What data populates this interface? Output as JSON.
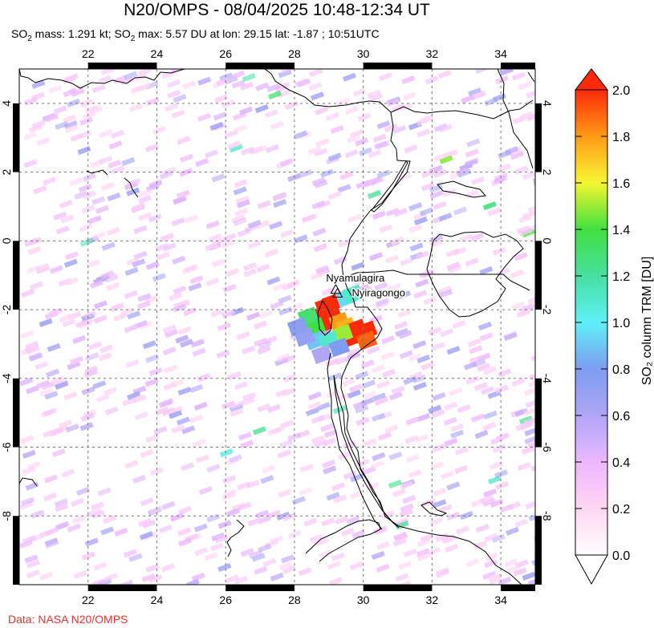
{
  "title": "N20/OMPS - 08/04/2025 10:48-12:34 UT",
  "subtitle": {
    "p1": "SO",
    "sub1": "2",
    "p2": " mass: 1.291 kt; SO",
    "sub2": "2",
    "p3": " max: 5.57 DU at lon: 29.15 lat: -1.87 ; 10:51UTC"
  },
  "credit": "Data: NASA N20/OMPS",
  "map": {
    "lon_range": [
      20.0,
      35.0
    ],
    "lat_range": [
      -10.0,
      5.0
    ],
    "lon_ticks": [
      "22",
      "24",
      "26",
      "28",
      "30",
      "32",
      "34"
    ],
    "lat_ticks": [
      "4",
      "2",
      "0",
      "-2",
      "-4",
      "-6",
      "-8"
    ],
    "gridlines": "dashed"
  },
  "volcanoes": [
    {
      "name": "Nyamulagira",
      "lon": 29.2,
      "lat": -1.41
    },
    {
      "name": "Nyiragongo",
      "lon": 29.25,
      "lat": -1.52
    }
  ],
  "colorbar": {
    "label": "SO₂ column TRM [DU]",
    "ticks": [
      "2.0",
      "1.8",
      "1.6",
      "1.4",
      "1.2",
      "1.0",
      "0.8",
      "0.6",
      "0.4",
      "0.2",
      "0.0"
    ],
    "min": 0.0,
    "max": 2.0
  },
  "plume": [
    {
      "lon": 28.9,
      "lat": -1.9,
      "du": 2.0
    },
    {
      "lon": 29.1,
      "lat": -1.8,
      "du": 2.0
    },
    {
      "lon": 28.9,
      "lat": -2.1,
      "du": 2.0
    },
    {
      "lon": 29.1,
      "lat": -2.2,
      "du": 2.0
    },
    {
      "lon": 28.9,
      "lat": -2.4,
      "du": 2.0
    },
    {
      "lon": 29.3,
      "lat": -2.35,
      "du": 1.8
    },
    {
      "lon": 29.5,
      "lat": -2.5,
      "du": 1.75
    },
    {
      "lon": 29.8,
      "lat": -2.55,
      "du": 2.0
    },
    {
      "lon": 29.7,
      "lat": -2.8,
      "du": 2.0
    },
    {
      "lon": 30.1,
      "lat": -2.6,
      "du": 2.0
    },
    {
      "lon": 30.1,
      "lat": -2.9,
      "du": 1.9
    },
    {
      "lon": 29.4,
      "lat": -2.7,
      "du": 1.5
    },
    {
      "lon": 28.6,
      "lat": -2.5,
      "du": 1.4
    },
    {
      "lon": 28.4,
      "lat": -2.2,
      "du": 1.3
    },
    {
      "lon": 28.6,
      "lat": -2.9,
      "du": 0.9
    },
    {
      "lon": 28.3,
      "lat": -2.8,
      "du": 0.7
    },
    {
      "lon": 29.0,
      "lat": -2.9,
      "du": 1.1
    },
    {
      "lon": 28.1,
      "lat": -2.5,
      "du": 0.75
    },
    {
      "lon": 29.5,
      "lat": -1.65,
      "du": 0.95
    },
    {
      "lon": 29.7,
      "lat": -1.55,
      "du": 1.1
    },
    {
      "lon": 29.3,
      "lat": -3.1,
      "du": 0.8
    },
    {
      "lon": 28.8,
      "lat": -3.3,
      "du": 0.6
    }
  ]
}
